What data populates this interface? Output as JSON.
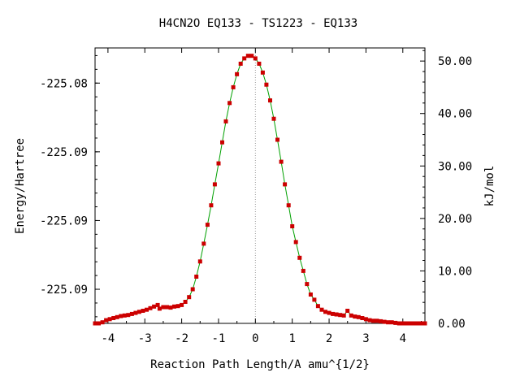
{
  "chart_data": {
    "type": "line",
    "title": "H4CN2O   EQ133 - TS1223 - EQ133",
    "xlabel": "Reaction Path Length/A amu^{1/2}",
    "ylabel": "Energy/Hartree",
    "y2label": "kJ/mol",
    "xlim": [
      -4.35,
      4.6
    ],
    "x_ticks": [
      -4,
      -3,
      -2,
      -1,
      0,
      1,
      2,
      3,
      4
    ],
    "x_tick_labels": [
      "-4",
      "-3",
      "-2",
      "-1",
      "0",
      "1",
      "2",
      "3",
      "4"
    ],
    "ylim_kjmol": [
      0,
      52.5
    ],
    "y_left_ticks_kjmol": [
      6.5,
      19.6,
      32.7,
      45.8
    ],
    "y_left_tick_labels": [
      "-225.09",
      "-225.09",
      "-225.09",
      "-225.08"
    ],
    "y_right_ticks": [
      0,
      10,
      20,
      30,
      40,
      50
    ],
    "y_right_tick_labels": [
      "0.00",
      "10.00",
      "20.00",
      "30.00",
      "40.00",
      "50.00"
    ],
    "ts_marker_x": 0,
    "colors": {
      "line": "#00a000",
      "marker": "#cc0000",
      "ts_line": "#999999"
    },
    "series": [
      {
        "x": [
          -4.35,
          -4.25,
          -4.15,
          -4.05,
          -3.95,
          -3.85,
          -3.75,
          -3.65,
          -3.55,
          -3.45,
          -3.35,
          -3.25,
          -3.15,
          -3.05,
          -2.95,
          -2.85,
          -2.75,
          -2.65,
          -2.6,
          -2.5,
          -2.4,
          -2.3,
          -2.2,
          -2.1,
          -2.0,
          -1.9,
          -1.8,
          -1.7,
          -1.6,
          -1.5,
          -1.4,
          -1.3,
          -1.2,
          -1.1,
          -1.0,
          -0.9,
          -0.8,
          -0.7,
          -0.6,
          -0.5,
          -0.4,
          -0.3,
          -0.2,
          -0.1,
          0.0,
          0.1,
          0.2,
          0.3,
          0.4,
          0.5,
          0.6,
          0.7,
          0.8,
          0.9,
          1.0,
          1.1,
          1.2,
          1.3,
          1.4,
          1.5,
          1.6,
          1.7,
          1.8,
          1.9,
          2.0,
          2.1,
          2.2,
          2.3,
          2.4,
          2.5,
          2.6,
          2.7,
          2.8,
          2.9,
          3.0,
          3.1,
          3.2,
          3.3,
          3.4,
          3.5,
          3.6,
          3.7,
          3.8,
          3.9,
          4.0,
          4.1,
          4.2,
          4.3,
          4.4,
          4.5,
          4.6
        ],
        "y": [
          0.0,
          0.0,
          0.2,
          0.6,
          0.8,
          1.0,
          1.2,
          1.4,
          1.5,
          1.6,
          1.8,
          2.0,
          2.2,
          2.4,
          2.6,
          2.9,
          3.2,
          3.5,
          2.8,
          3.1,
          3.1,
          3.0,
          3.2,
          3.3,
          3.5,
          4.1,
          5.0,
          6.5,
          8.9,
          11.8,
          15.2,
          18.8,
          22.5,
          26.5,
          30.5,
          34.5,
          38.5,
          42.0,
          45.0,
          47.5,
          49.5,
          50.5,
          51.0,
          51.0,
          50.5,
          49.5,
          47.8,
          45.5,
          42.5,
          39.0,
          35.0,
          30.8,
          26.5,
          22.5,
          18.5,
          15.5,
          12.5,
          10.0,
          7.5,
          5.5,
          4.5,
          3.3,
          2.6,
          2.2,
          2.0,
          1.8,
          1.7,
          1.6,
          1.5,
          2.4,
          1.5,
          1.3,
          1.2,
          1.0,
          0.8,
          0.6,
          0.5,
          0.5,
          0.4,
          0.3,
          0.2,
          0.2,
          0.1,
          0.0,
          0.0,
          0.0,
          0.0,
          0.0,
          0.0,
          0.0,
          0.0
        ]
      }
    ]
  }
}
